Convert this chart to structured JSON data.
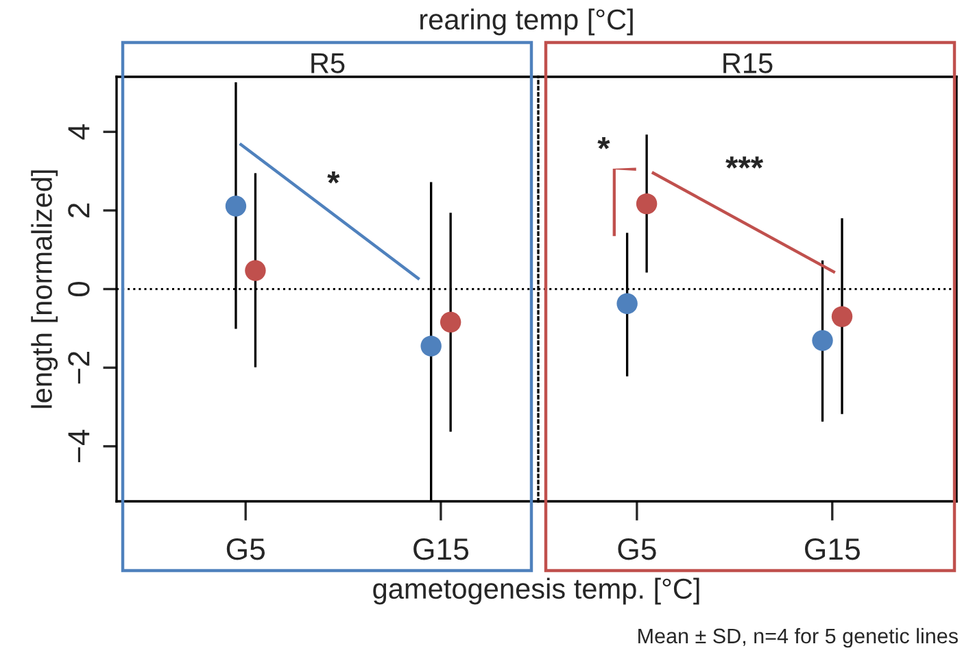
{
  "chart_data": [
    {
      "type": "scatter",
      "title": "R5",
      "categories": [
        "G5",
        "G15"
      ],
      "ylabel": "length [normalized]",
      "xlabel": "gametogenesis temp. [°C]",
      "ylim": [
        -5.4,
        5.4
      ],
      "yticks": [
        {
          "value": -4,
          "label": "−4"
        },
        {
          "value": -2,
          "label": "−2"
        },
        0,
        2,
        4
      ],
      "marker": "circle",
      "grid": false,
      "legend": false,
      "series": [
        {
          "color": "#4f81bd",
          "values": [
            2.11,
            -1.45
          ],
          "errors": [
            [
              -1.01,
              5.26
            ],
            [
              -5.4,
              2.72
            ]
          ]
        },
        {
          "color": "#c0504d",
          "values": [
            0.47,
            -0.84
          ],
          "errors": [
            [
              -1.99,
              2.95
            ],
            [
              -3.63,
              1.94
            ]
          ]
        }
      ],
      "ref_lines": [
        {
          "axis": "y",
          "value": 0,
          "line_style": "dotted",
          "color": "#000000"
        }
      ],
      "annotations": [
        "rearing temp [°C]",
        "*",
        "Mean ± SD, n=4 for 5 genetic lines"
      ]
    },
    {
      "type": "scatter",
      "title": "R15",
      "categories": [
        "G5",
        "G15"
      ],
      "ylim": [
        -5.4,
        5.4
      ],
      "tick_labels": "x",
      "marker": "circle",
      "grid": false,
      "legend": false,
      "series": [
        {
          "color": "#4f81bd",
          "values": [
            -0.37,
            -1.31
          ],
          "errors": [
            [
              -2.22,
              1.43
            ],
            [
              -3.37,
              0.73
            ]
          ]
        },
        {
          "color": "#c0504d",
          "values": [
            2.17,
            -0.7
          ],
          "errors": [
            [
              0.42,
              3.93
            ],
            [
              -3.18,
              1.8
            ]
          ]
        }
      ],
      "ref_lines": [
        {
          "axis": "y",
          "value": 0,
          "line_style": "dotted",
          "color": "#000000"
        }
      ],
      "annotations": [
        "*",
        "***"
      ]
    }
  ]
}
